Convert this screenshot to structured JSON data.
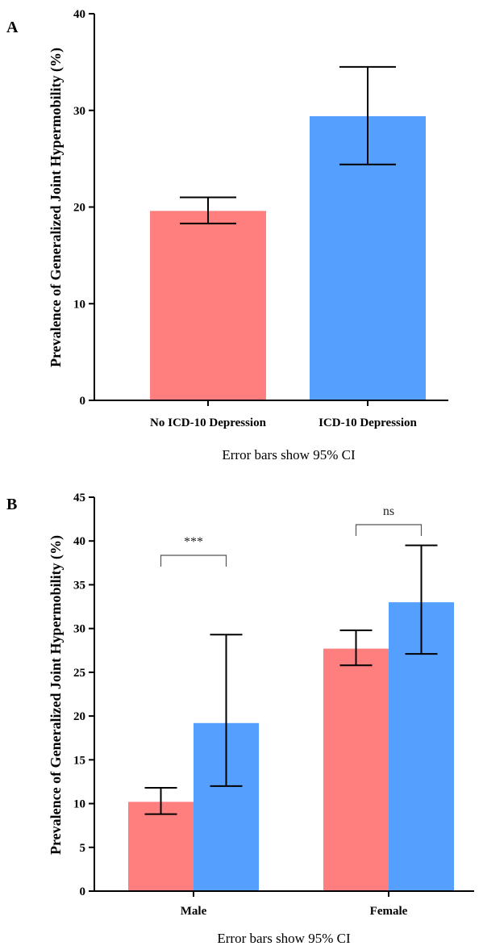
{
  "colors": {
    "no_depression": "#FF7F7F",
    "depression": "#559FFF",
    "axis": "#000000",
    "errorbar": "#000000"
  },
  "chart_data": [
    {
      "panel": "A",
      "type": "bar",
      "ylabel": "Prevalence of Generalized  Joint Hypermobility (%)",
      "ylim": [
        0,
        40
      ],
      "yticks": [
        0,
        10,
        20,
        30,
        40
      ],
      "categories": [
        "No ICD-10 Depression",
        "ICD-10 Depression"
      ],
      "values": [
        19.6,
        29.4
      ],
      "ci": [
        [
          18.3,
          21.0
        ],
        [
          24.4,
          34.5
        ]
      ],
      "bar_colors": [
        "#FF7F7F",
        "#559FFF"
      ],
      "note": "Error bars show 95% CI",
      "grid": false,
      "legend": "none"
    },
    {
      "panel": "B",
      "type": "bar",
      "ylabel": "Prevalence of Generalized  Joint Hypermobility (%)",
      "ylim": [
        0,
        45
      ],
      "yticks": [
        0,
        5,
        10,
        15,
        20,
        25,
        30,
        35,
        40,
        45
      ],
      "categories": [
        "Male",
        "Female"
      ],
      "series": [
        {
          "values": [
            10.2,
            27.7
          ],
          "ci": [
            [
              8.8,
              11.8
            ],
            [
              25.8,
              29.8
            ]
          ],
          "color": "#FF7F7F"
        },
        {
          "values": [
            19.2,
            33.0
          ],
          "ci": [
            [
              12.0,
              29.3
            ],
            [
              27.1,
              39.5
            ]
          ],
          "color": "#559FFF"
        }
      ],
      "annotations": [
        "***",
        "ns"
      ],
      "note": "Error bars show 95% CI",
      "grid": false,
      "legend": "none"
    }
  ]
}
